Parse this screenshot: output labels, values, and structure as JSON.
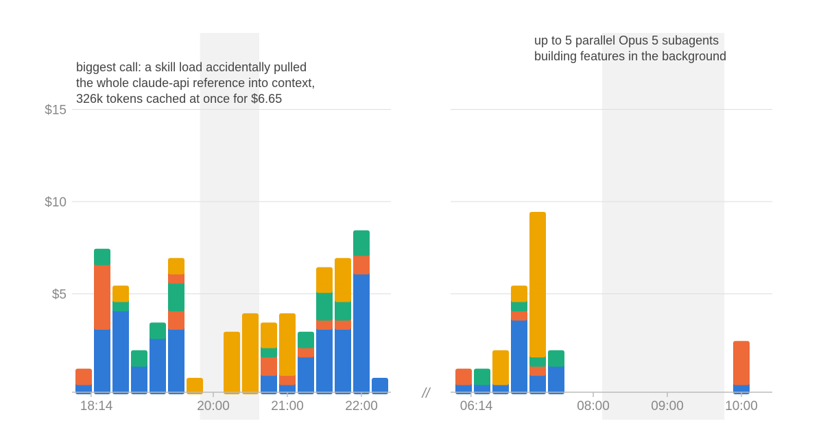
{
  "chart_data": {
    "type": "bar",
    "stacked": true,
    "unit_value": 0.5,
    "colors": {
      "blue": "#2F7AD7",
      "orange": "#EE6A38",
      "green": "#1EAE7E",
      "yellow": "#EEA500",
      "shade": "#F2F2F2",
      "grid": "#DDDDDD",
      "axis": "#BBBBBB"
    },
    "y_ticks": [
      "$5",
      "$10",
      "$15"
    ],
    "y_tick_values": [
      5,
      10,
      15
    ],
    "ylim": [
      0,
      19.5
    ],
    "break_mark": "//",
    "annotations": [
      {
        "lines": [
          "biggest call: a skill load accidentally pulled",
          "the whole claude-api reference into context,",
          "326k tokens cached at once for $6.65"
        ]
      },
      {
        "lines": [
          "up to 5 parallel Opus 5 subagents",
          "building features in the background"
        ]
      }
    ],
    "panels": [
      {
        "x_ticks": [
          {
            "label": "18:14",
            "col": 0.4
          },
          {
            "label": "20:00",
            "col": 7.0
          },
          {
            "label": "21:00",
            "col": 11.0
          },
          {
            "label": "22:00",
            "col": 15.0
          }
        ],
        "shaded_cols": [
          6.8,
          10.0
        ],
        "columns": [
          [
            [
              "blue",
              1
            ],
            [
              "orange",
              1
            ]
          ],
          [
            [
              "blue",
              7
            ],
            [
              "orange",
              7
            ],
            [
              "green",
              1
            ]
          ],
          [
            [
              "blue",
              9
            ],
            [
              "green",
              1
            ],
            [
              "yellow",
              1
            ]
          ],
          [
            [
              "blue",
              3
            ],
            [
              "green",
              1
            ]
          ],
          [
            [
              "blue",
              6
            ],
            [
              "green",
              1
            ]
          ],
          [
            [
              "blue",
              7
            ],
            [
              "orange",
              2
            ],
            [
              "green",
              3
            ],
            [
              "orange",
              1
            ],
            [
              "yellow",
              1
            ]
          ],
          [
            [
              "yellow",
              1
            ]
          ],
          [],
          [
            [
              "yellow",
              6
            ]
          ],
          [
            [
              "yellow",
              8
            ]
          ],
          [
            [
              "blue",
              2
            ],
            [
              "orange",
              2
            ],
            [
              "green",
              1
            ],
            [
              "yellow",
              2
            ]
          ],
          [
            [
              "blue",
              1
            ],
            [
              "orange",
              1
            ],
            [
              "yellow",
              6
            ]
          ],
          [
            [
              "blue",
              4
            ],
            [
              "orange",
              1
            ],
            [
              "green",
              1
            ]
          ],
          [
            [
              "blue",
              7
            ],
            [
              "orange",
              1
            ],
            [
              "green",
              3
            ],
            [
              "yellow",
              2
            ]
          ],
          [
            [
              "blue",
              7
            ],
            [
              "orange",
              1
            ],
            [
              "green",
              2
            ],
            [
              "yellow",
              4
            ]
          ],
          [
            [
              "blue",
              13
            ],
            [
              "orange",
              2
            ],
            [
              "green",
              2
            ]
          ],
          [
            [
              "blue",
              1
            ]
          ]
        ]
      },
      {
        "x_ticks": [
          {
            "label": "06:14",
            "col": 0.4
          },
          {
            "label": "08:00",
            "col": 7.0
          },
          {
            "label": "09:00",
            "col": 11.0
          },
          {
            "label": "10:00",
            "col": 15.0
          }
        ],
        "shaded_cols": [
          8.0,
          14.6
        ],
        "columns": [
          [
            [
              "blue",
              1
            ],
            [
              "orange",
              1
            ]
          ],
          [
            [
              "blue",
              1
            ],
            [
              "green",
              1
            ]
          ],
          [
            [
              "blue",
              1
            ],
            [
              "yellow",
              3
            ]
          ],
          [
            [
              "blue",
              8
            ],
            [
              "orange",
              1
            ],
            [
              "green",
              1
            ],
            [
              "yellow",
              1
            ]
          ],
          [
            [
              "blue",
              2
            ],
            [
              "orange",
              1
            ],
            [
              "green",
              1
            ],
            [
              "yellow",
              15
            ]
          ],
          [
            [
              "blue",
              3
            ],
            [
              "green",
              1
            ]
          ],
          [],
          [],
          [],
          [],
          [],
          [],
          [],
          [],
          [],
          [
            [
              "blue",
              1
            ],
            [
              "orange",
              4
            ]
          ]
        ]
      }
    ]
  }
}
